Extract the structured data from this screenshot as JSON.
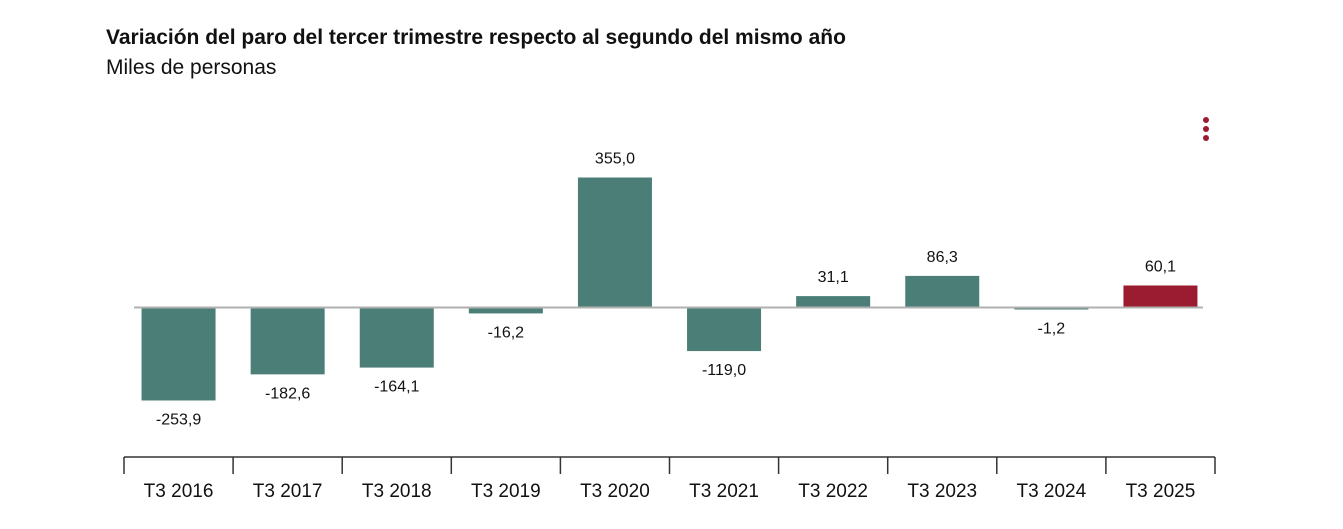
{
  "title": "Variación del paro del tercer trimestre respecto al segundo del mismo año",
  "subtitle": "Miles de personas",
  "menu_icon": "more-vertical-icon",
  "colors": {
    "bar": "#4a7e76",
    "highlight": "#9b1c31",
    "menu": "#9b1c31",
    "zero_line": "#b0b0b0",
    "axis": "#333333"
  },
  "chart_data": {
    "type": "bar",
    "title": "Variación del paro del tercer trimestre respecto al segundo del mismo año",
    "ylabel": "Miles de personas",
    "xlabel": "",
    "categories": [
      "T3 2016",
      "T3 2017",
      "T3 2018",
      "T3 2019",
      "T3 2020",
      "T3 2021",
      "T3 2022",
      "T3 2023",
      "T3 2024",
      "T3 2025"
    ],
    "values": [
      -253.9,
      -182.6,
      -164.1,
      -16.2,
      355.0,
      -119.0,
      31.1,
      86.3,
      -1.2,
      60.1
    ],
    "labels": [
      "-253,9",
      "-182,6",
      "-164,1",
      "-16,2",
      "355,0",
      "-119,0",
      "31,1",
      "86,3",
      "-1,2",
      "60,1"
    ],
    "highlight_index": 9,
    "grid": false
  }
}
